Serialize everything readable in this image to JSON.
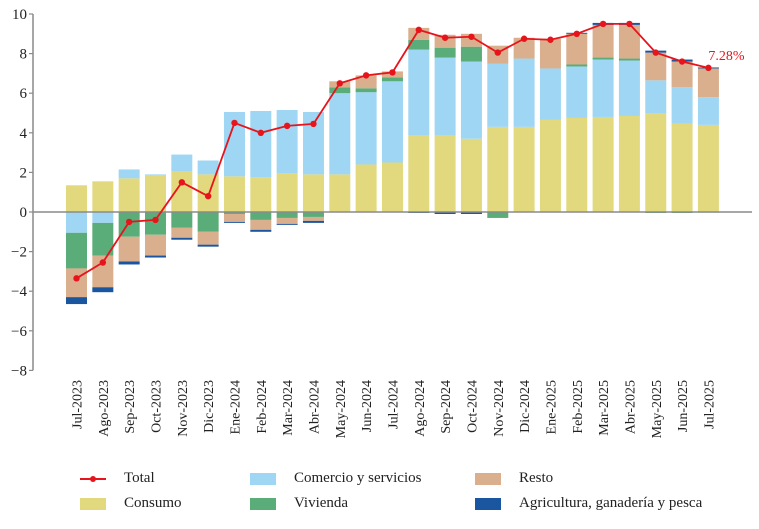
{
  "chart_data": {
    "type": "bar",
    "stacked": true,
    "title": "",
    "xlabel": "",
    "ylabel": "",
    "ylim": [
      -8,
      10
    ],
    "yticks": [
      10,
      8,
      6,
      4,
      2,
      0,
      -2,
      -4,
      -6,
      -8
    ],
    "ytick_labels": [
      "10",
      "8",
      "6",
      "4",
      "2",
      "0",
      "−2",
      "−4",
      "−6",
      "−8"
    ],
    "grid": false,
    "legend_position": "bottom",
    "categories": [
      "Jul-2023",
      "Ago-2023",
      "Sep-2023",
      "Oct-2023",
      "Nov-2023",
      "Dic-2023",
      "Ene-2024",
      "Feb-2024",
      "Mar-2024",
      "Abr-2024",
      "May-2024",
      "Jun-2024",
      "Jul-2024",
      "Ago-2024",
      "Sep-2024",
      "Oct-2024",
      "Nov-2024",
      "Dic-2024",
      "Ene-2025",
      "Feb-2025",
      "Mar-2025",
      "Abr-2025",
      "May-2025",
      "Jun-2025",
      "Jul-2025"
    ],
    "series": [
      {
        "name": "Consumo",
        "kind": "bar",
        "color": "#e2d97f",
        "values": [
          1.35,
          1.55,
          1.7,
          1.85,
          2.05,
          1.9,
          1.8,
          1.75,
          1.95,
          1.9,
          1.9,
          2.4,
          2.5,
          3.85,
          3.85,
          3.7,
          4.3,
          4.3,
          4.65,
          4.75,
          4.8,
          4.85,
          5.0,
          4.45,
          4.4
        ]
      },
      {
        "name": "Comercio y servicios",
        "kind": "bar",
        "color": "#9fd6f3",
        "values": [
          -1.05,
          -0.55,
          0.45,
          0.05,
          0.85,
          0.7,
          3.25,
          3.35,
          3.2,
          3.15,
          4.1,
          3.65,
          4.1,
          4.35,
          3.95,
          3.9,
          3.2,
          3.45,
          2.6,
          2.6,
          2.9,
          2.8,
          1.65,
          1.85,
          1.4
        ]
      },
      {
        "name": "Vivienda",
        "kind": "bar",
        "color": "#5aad79",
        "values": [
          -1.8,
          -1.65,
          -1.25,
          -1.15,
          -0.8,
          -1.0,
          -0.1,
          -0.4,
          -0.3,
          -0.25,
          0.3,
          0.2,
          0.2,
          0.5,
          0.5,
          0.75,
          -0.3,
          0.0,
          0.0,
          0.1,
          0.1,
          0.1,
          -0.05,
          -0.05,
          -0.03
        ]
      },
      {
        "name": "Resto",
        "kind": "bar",
        "color": "#d9af8d",
        "values": [
          -1.45,
          -1.6,
          -1.25,
          -1.05,
          -0.5,
          -0.65,
          -0.4,
          -0.5,
          -0.3,
          -0.2,
          0.3,
          0.65,
          0.3,
          0.6,
          0.65,
          0.65,
          0.9,
          1.05,
          1.5,
          1.55,
          1.65,
          1.7,
          1.4,
          1.3,
          1.45
        ]
      },
      {
        "name": "Agricultura, ganadería y pesca",
        "kind": "bar",
        "color": "#1a56a0",
        "values": [
          -0.35,
          -0.25,
          -0.15,
          -0.1,
          -0.1,
          -0.1,
          -0.05,
          -0.1,
          -0.05,
          -0.1,
          0.0,
          0.0,
          0.0,
          -0.05,
          -0.1,
          -0.1,
          0.0,
          0.0,
          0.0,
          0.05,
          0.1,
          0.1,
          0.1,
          0.1,
          0.05
        ]
      },
      {
        "name": "Total",
        "kind": "line",
        "color": "#e8141c",
        "values": [
          -3.35,
          -2.55,
          -0.5,
          -0.4,
          1.5,
          0.8,
          4.5,
          4.0,
          4.35,
          4.45,
          6.5,
          6.9,
          7.05,
          9.2,
          8.8,
          8.85,
          8.05,
          8.75,
          8.7,
          9.0,
          9.5,
          9.5,
          8.05,
          7.6,
          7.28
        ]
      }
    ],
    "annotations": [
      {
        "text": "7.28%",
        "category": "Jul-2025",
        "series": "Total"
      }
    ]
  },
  "legend": {
    "items": [
      {
        "label": "Total",
        "type": "line",
        "color": "#e8141c"
      },
      {
        "label": "Comercio y servicios",
        "type": "box",
        "color": "#9fd6f3"
      },
      {
        "label": "Resto",
        "type": "box",
        "color": "#d9af8d"
      },
      {
        "label": "Consumo",
        "type": "box",
        "color": "#e2d97f"
      },
      {
        "label": "Vivienda",
        "type": "box",
        "color": "#5aad79"
      },
      {
        "label": "Agricultura, ganadería y pesca",
        "type": "box",
        "color": "#1a56a0"
      }
    ]
  }
}
